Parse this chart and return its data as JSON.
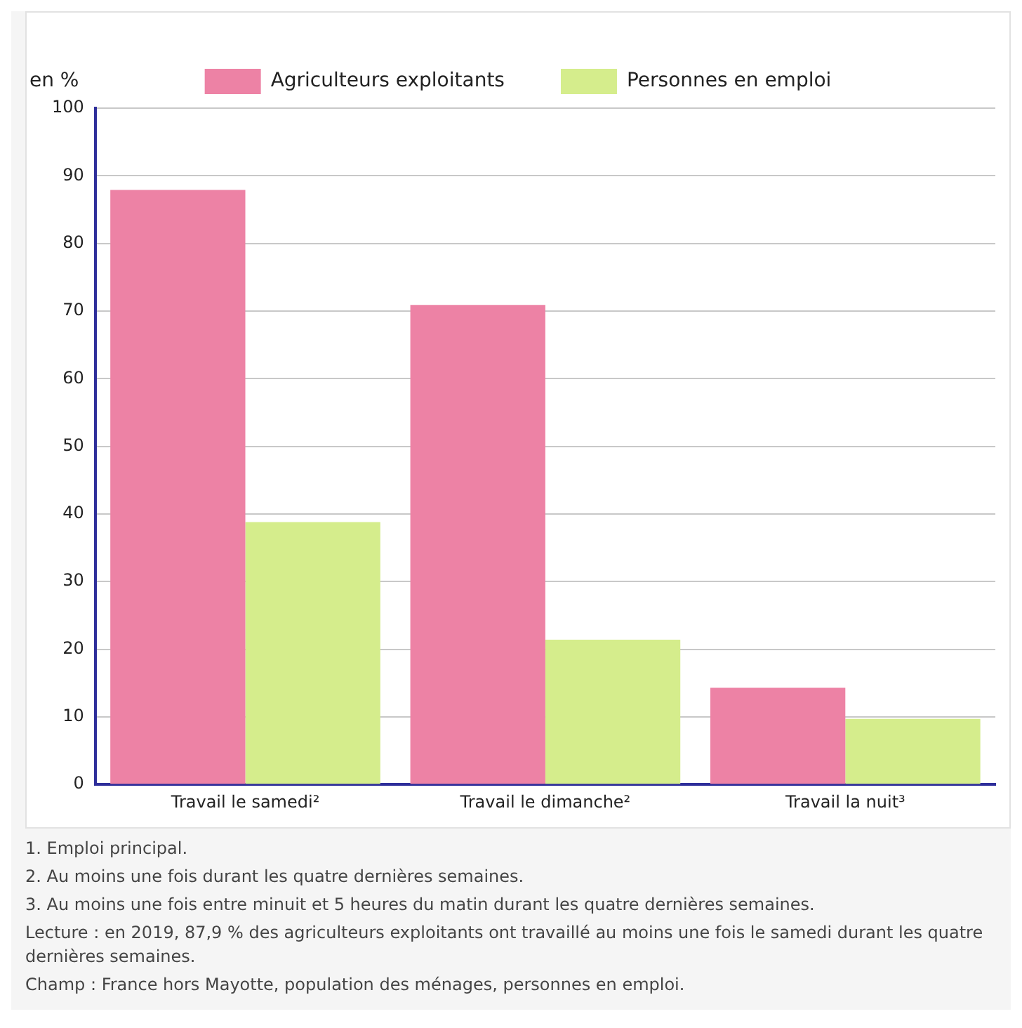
{
  "chart_data": {
    "type": "bar",
    "ylabel": "en %",
    "categories": [
      "Travail le samedi²",
      "Travail le dimanche²",
      "Travail la nuit³"
    ],
    "series": [
      {
        "name": "Agriculteurs exploitants",
        "color": "#ed82a5",
        "values": [
          87.9,
          70.9,
          14.3
        ]
      },
      {
        "name": "Personnes en emploi",
        "color": "#d5ed8c",
        "values": [
          38.8,
          21.4,
          9.7
        ]
      }
    ],
    "ylim": [
      0,
      100
    ],
    "yticks": [
      0,
      10,
      20,
      30,
      40,
      50,
      60,
      70,
      80,
      90,
      100
    ],
    "grid": "y",
    "legend": "top",
    "annotations": [
      "1. Emploi principal.",
      "2. Au moins une fois durant les quatre dernières semaines.",
      "3. Au moins une fois entre minuit et 5 heures du matin durant les quatre dernières semaines.",
      "Lecture : en 2019, 87,9 % des agriculteurs exploitants ont travaillé au moins une fois le samedi durant les quatre dernières semaines.",
      "Champ : France hors Mayotte, population des ménages, personnes en emploi."
    ]
  }
}
